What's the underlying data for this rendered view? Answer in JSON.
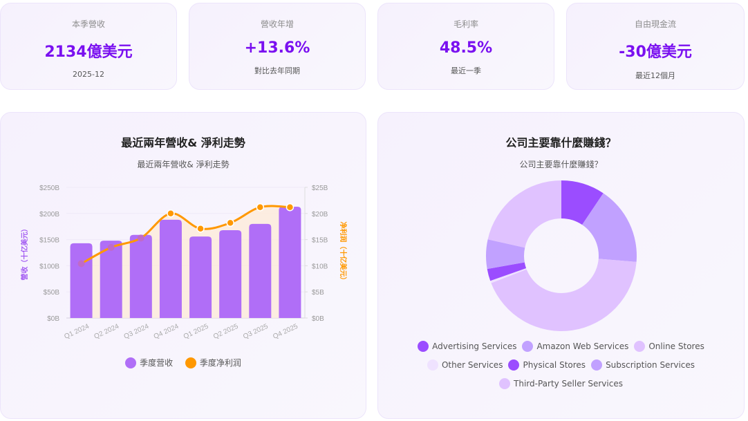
{
  "kpis": [
    {
      "label": "本季營收",
      "value": "2134億美元",
      "sub": "2025-12"
    },
    {
      "label": "營收年增",
      "value": "+13.6%",
      "sub": "對比去年同期"
    },
    {
      "label": "毛利率",
      "value": "48.5%",
      "sub": "最近一季"
    },
    {
      "label": "自由現金流",
      "value": "-30億美元",
      "sub": "最近12個月"
    }
  ],
  "trend_panel": {
    "title": "最近兩年營收& 淨利走勢",
    "subtitle": "最近兩年營收& 淨利走勢",
    "left_axis_label": "營收（十亿美元）",
    "right_axis_label": "净利润（十亿美元）",
    "left_ticks": [
      "$0B",
      "$50B",
      "$100B",
      "$150B",
      "$200B",
      "$250B"
    ],
    "right_ticks": [
      "$0B",
      "$5B",
      "$10B",
      "$15B",
      "$20B",
      "$25B"
    ],
    "legend": [
      {
        "label": "季度营收",
        "color": "#b06ef7"
      },
      {
        "label": "季度净利润",
        "color": "#ff9800"
      }
    ]
  },
  "revenue_panel": {
    "title": "公司主要靠什麼賺錢？",
    "subtitle": "公司主要靠什麼賺錢？",
    "legend_rows": [
      [
        {
          "label": "Advertising Services",
          "color": "#9b4dff"
        },
        {
          "label": "Amazon Web Services",
          "color": "#c1a1ff"
        },
        {
          "label": "Online Stores",
          "color": "#e0c2ff"
        }
      ],
      [
        {
          "label": "Other Services",
          "color": "#efe2ff"
        },
        {
          "label": "Physical Stores",
          "color": "#9b4dff"
        },
        {
          "label": "Subscription Services",
          "color": "#c1a1ff"
        }
      ],
      [
        {
          "label": "Third-Party Seller Services",
          "color": "#e0c2ff"
        }
      ]
    ]
  },
  "chart_data": [
    {
      "type": "bar",
      "title": "最近兩年營收& 淨利走勢",
      "subtitle": "最近兩年營收& 淨利走勢",
      "categories": [
        "Q1 2024",
        "Q2 2024",
        "Q3 2024",
        "Q4 2024",
        "Q1 2025",
        "Q2 2025",
        "Q3 2025",
        "Q4 2025"
      ],
      "series": [
        {
          "name": "季度营收",
          "type": "bar",
          "axis": "left",
          "color": "#b06ef7",
          "values": [
            143,
            148,
            159,
            188,
            156,
            168,
            180,
            213
          ]
        },
        {
          "name": "季度净利润",
          "type": "line",
          "axis": "right",
          "color": "#ff9800",
          "values": [
            10.4,
            13.5,
            15.3,
            20.0,
            17.1,
            18.2,
            21.2,
            21.2
          ]
        }
      ],
      "ylabel": "營收（十亿美元）",
      "y2label": "净利润（十亿美元）",
      "ylim": [
        0,
        250
      ],
      "y2lim": [
        0,
        25
      ],
      "grid": true,
      "legend_position": "bottom"
    },
    {
      "type": "pie",
      "title": "公司主要靠什麼賺錢？",
      "subtitle": "公司主要靠什麼賺錢？",
      "donut": true,
      "categories": [
        "Advertising Services",
        "Amazon Web Services",
        "Online Stores",
        "Other Services",
        "Physical Stores",
        "Subscription Services",
        "Third-Party Seller Services"
      ],
      "values": [
        9.4,
        16.9,
        42.8,
        0.5,
        2.6,
        6.3,
        21.5
      ],
      "colors": [
        "#9b4dff",
        "#c1a1ff",
        "#e0c2ff",
        "#efe2ff",
        "#9b4dff",
        "#c1a1ff",
        "#e0c2ff"
      ],
      "legend_position": "bottom"
    }
  ]
}
